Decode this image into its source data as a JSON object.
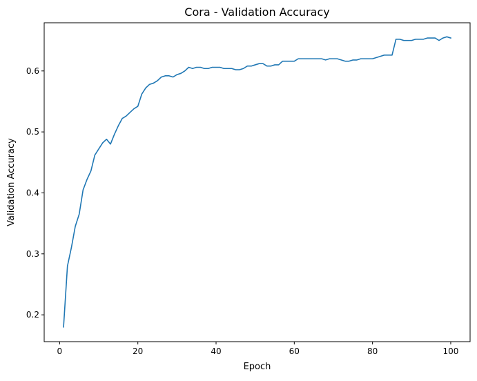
{
  "chart_data": {
    "type": "line",
    "title": "Cora - Validation Accuracy",
    "xlabel": "Epoch",
    "ylabel": "Validation Accuracy",
    "xlim": [
      -3.95,
      104.95
    ],
    "ylim": [
      0.156,
      0.679
    ],
    "xticks": [
      0,
      20,
      40,
      60,
      80,
      100
    ],
    "yticks": [
      0.2,
      0.3,
      0.4,
      0.5,
      0.6
    ],
    "xtick_labels": [
      "0",
      "20",
      "40",
      "60",
      "80",
      "100"
    ],
    "ytick_labels": [
      "0.2",
      "0.3",
      "0.4",
      "0.5",
      "0.6"
    ],
    "grid": false,
    "line_color": "#1f77b4",
    "series": [
      {
        "x": [
          1,
          2,
          3,
          4,
          5,
          6,
          7,
          8,
          9,
          10,
          11,
          12,
          13,
          14,
          15,
          16,
          17,
          18,
          19,
          20,
          21,
          22,
          23,
          24,
          25,
          26,
          27,
          28,
          29,
          30,
          31,
          32,
          33,
          34,
          35,
          36,
          37,
          38,
          39,
          40,
          41,
          42,
          43,
          44,
          45,
          46,
          47,
          48,
          49,
          50,
          51,
          52,
          53,
          54,
          55,
          56,
          57,
          58,
          59,
          60,
          61,
          62,
          63,
          64,
          65,
          66,
          67,
          68,
          69,
          70,
          71,
          72,
          73,
          74,
          75,
          76,
          77,
          78,
          79,
          80,
          81,
          82,
          83,
          84,
          85,
          86,
          87,
          88,
          89,
          90,
          91,
          92,
          93,
          94,
          95,
          96,
          97,
          98,
          99,
          100
        ],
        "values": [
          0.18,
          0.28,
          0.31,
          0.345,
          0.365,
          0.405,
          0.422,
          0.436,
          0.462,
          0.472,
          0.482,
          0.488,
          0.48,
          0.496,
          0.51,
          0.522,
          0.526,
          0.532,
          0.538,
          0.542,
          0.562,
          0.572,
          0.578,
          0.58,
          0.584,
          0.59,
          0.592,
          0.592,
          0.59,
          0.594,
          0.596,
          0.6,
          0.606,
          0.604,
          0.606,
          0.606,
          0.604,
          0.604,
          0.606,
          0.606,
          0.606,
          0.604,
          0.604,
          0.604,
          0.602,
          0.602,
          0.604,
          0.608,
          0.608,
          0.61,
          0.612,
          0.612,
          0.608,
          0.608,
          0.61,
          0.61,
          0.616,
          0.616,
          0.616,
          0.616,
          0.62,
          0.62,
          0.62,
          0.62,
          0.62,
          0.62,
          0.62,
          0.618,
          0.62,
          0.62,
          0.62,
          0.618,
          0.616,
          0.616,
          0.618,
          0.618,
          0.62,
          0.62,
          0.62,
          0.62,
          0.622,
          0.624,
          0.626,
          0.626,
          0.626,
          0.652,
          0.652,
          0.65,
          0.65,
          0.65,
          0.652,
          0.652,
          0.652,
          0.654,
          0.654,
          0.654,
          0.65,
          0.654,
          0.656,
          0.654
        ]
      }
    ]
  }
}
